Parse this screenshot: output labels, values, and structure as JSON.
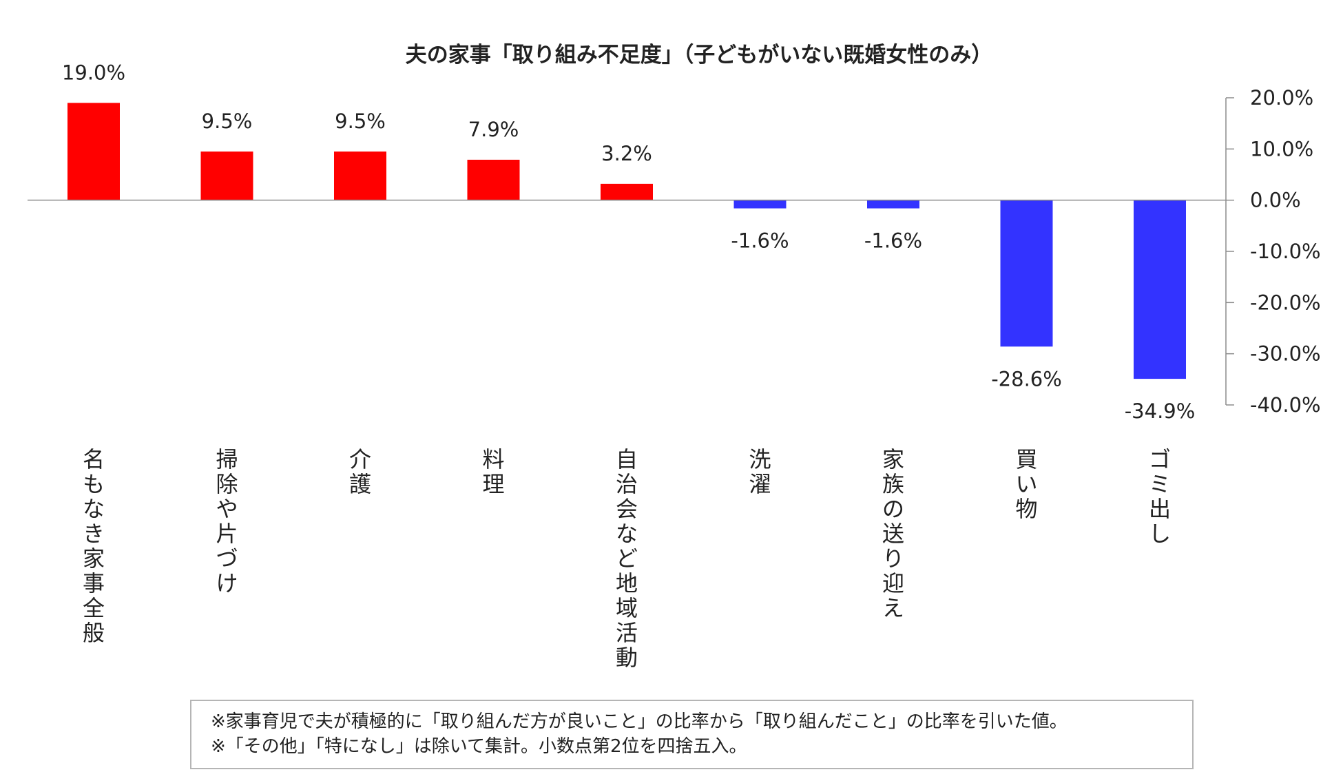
{
  "chart_data": {
    "type": "bar",
    "title": "夫の家事「取り組み不足度」（子どもがいない既婚女性のみ）",
    "categories": [
      "名もなき家事全般",
      "掃除や片づけ",
      "介護",
      "料理",
      "自治会など地域活動",
      "洗濯",
      "家族の送り迎え",
      "買い物",
      "ゴミ出し"
    ],
    "values": [
      19.0,
      9.5,
      9.5,
      7.9,
      3.2,
      -1.6,
      -1.6,
      -28.6,
      -34.9
    ],
    "value_labels": [
      "19.0%",
      "9.5%",
      "9.5%",
      "7.9%",
      "3.2%",
      "-1.6%",
      "-1.6%",
      "-28.6%",
      "-34.9%"
    ],
    "ylim": [
      -40,
      20
    ],
    "y_ticks": [
      20,
      10,
      0,
      -10,
      -20,
      -30,
      -40
    ],
    "y_tick_labels": [
      "20.0%",
      "10.0%",
      "0.0%",
      "-10.0%",
      "-20.0%",
      "-30.0%",
      "-40.0%"
    ],
    "y_axis_position": "right",
    "xlabel": "",
    "ylabel": "",
    "colors": {
      "positive": "#ff0000",
      "negative": "#3333ff",
      "axis": "#8c8c8c",
      "text": "#222222"
    }
  },
  "notes": [
    "※家事育児で夫が積極的に「取り組んだ方が良いこと」の比率から「取り組んだこと」の比率を引いた値。",
    "※「その他」「特になし」は除いて集計。小数点第2位を四捨五入。"
  ]
}
